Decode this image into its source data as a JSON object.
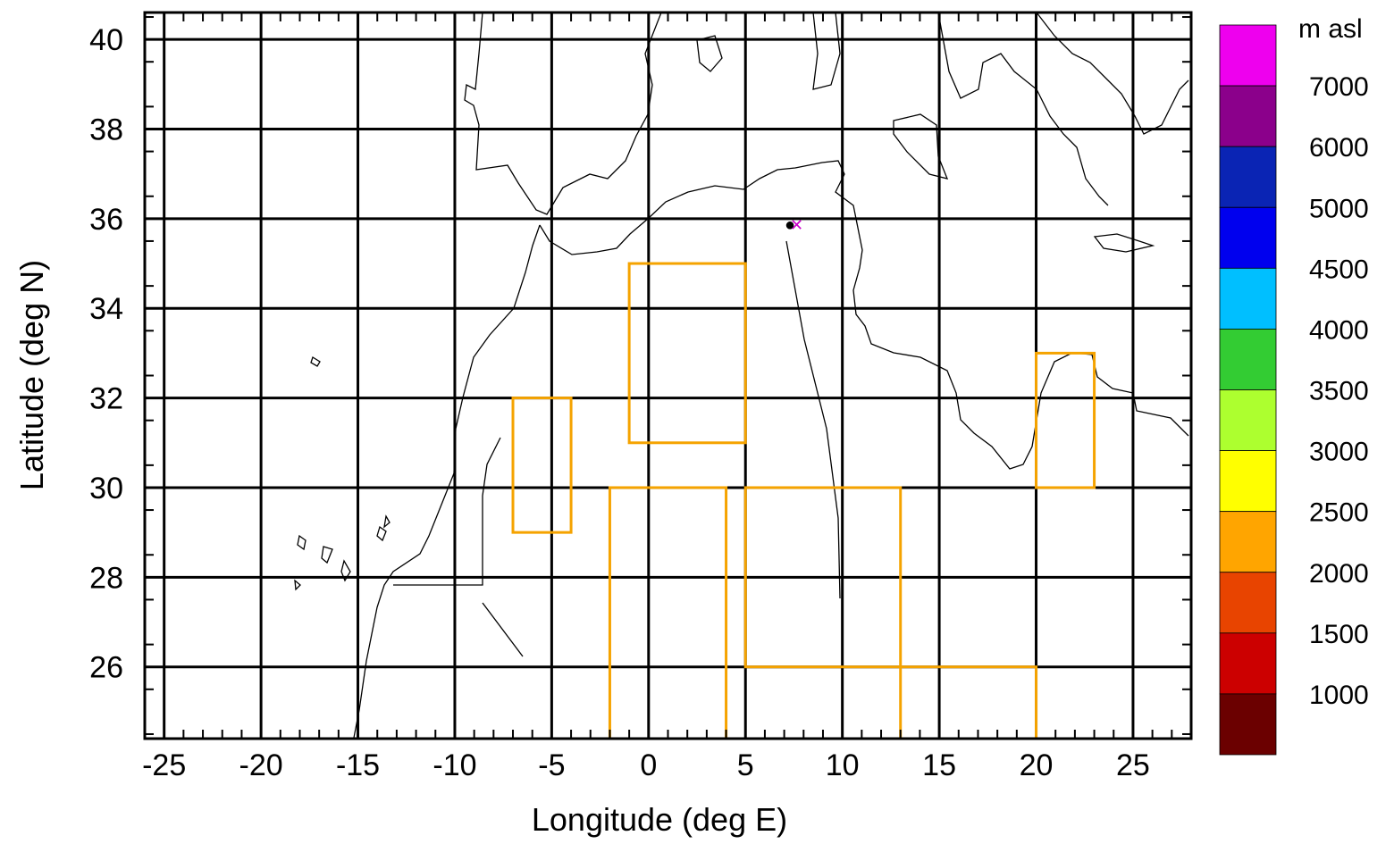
{
  "chart_data": {
    "type": "map",
    "xlabel": "Longitude (deg E)",
    "ylabel": "Latitude (deg N)",
    "xlim": [
      -26,
      28
    ],
    "ylim": [
      24.4,
      40.6
    ],
    "xticks": [
      -25,
      -20,
      -15,
      -10,
      -5,
      0,
      5,
      10,
      15,
      20,
      25
    ],
    "yticks": [
      26,
      28,
      30,
      32,
      34,
      36,
      38,
      40
    ],
    "grid": true,
    "regions": [
      {
        "lon": [
          -7,
          -4
        ],
        "lat": [
          29,
          32
        ]
      },
      {
        "lon": [
          -1,
          5
        ],
        "lat": [
          31,
          35
        ]
      },
      {
        "lon": [
          -2,
          4
        ],
        "lat": [
          24.4,
          30
        ]
      },
      {
        "lon": [
          5,
          13
        ],
        "lat": [
          26,
          30
        ]
      },
      {
        "lon": [
          13,
          20
        ],
        "lat": [
          24.4,
          26
        ]
      },
      {
        "lon": [
          20,
          23
        ],
        "lat": [
          30,
          33
        ]
      }
    ],
    "region_color": "#f5a300",
    "colorbar": {
      "title": "m asl",
      "levels": [
        "7000",
        "6000",
        "5000",
        "4500",
        "4000",
        "3500",
        "3000",
        "2500",
        "2000",
        "1500",
        "1000"
      ],
      "colors": [
        "#ee00ee",
        "#8b008b",
        "#0a24b4",
        "#0000ee",
        "#00bfff",
        "#33cc33",
        "#adff2f",
        "#ffff00",
        "#ffa500",
        "#e84400",
        "#cc0000",
        "#6b0000"
      ]
    }
  }
}
